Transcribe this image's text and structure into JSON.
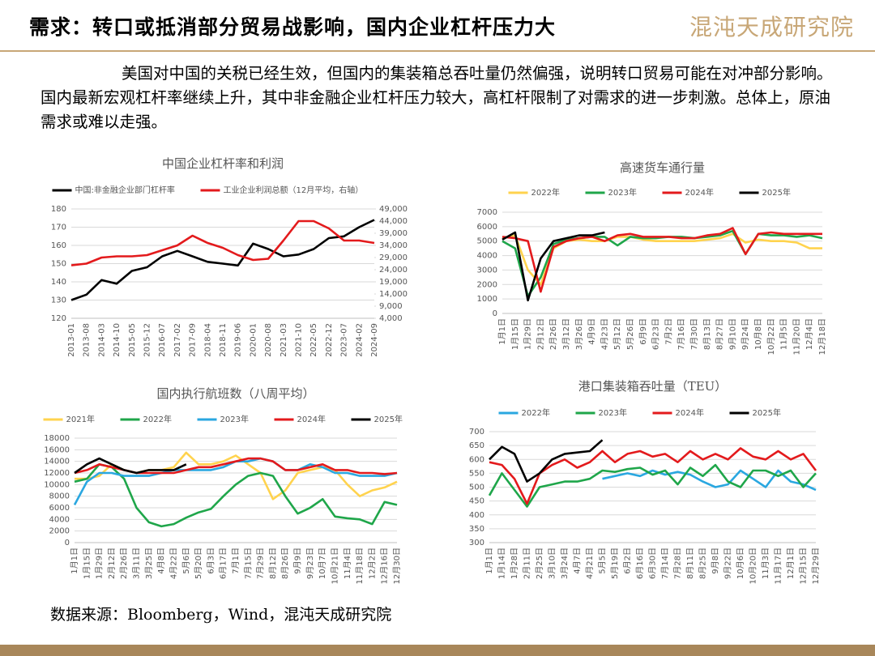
{
  "header": {
    "title": "需求：转口或抵消部分贸易战影响，国内企业杠杆压力大",
    "logo": "混沌天成研究院"
  },
  "body": "美国对中国的关税已经生效，但国内的集装箱总吞吐量仍然偏强，说明转口贸易可能在对冲部分影响。国内最新宏观杠杆率继续上升，其中非金融企业杠杆压力较大，高杠杆限制了对需求的进一步刺激。总体上，原油需求或难以走强。",
  "source": "数据来源：Bloomberg，Wind，混沌天成研究院",
  "chart_data": [
    {
      "type": "line",
      "title": "中国企业杠杆率和利润",
      "categories": [
        "2013-01",
        "2013-08",
        "2014-03",
        "2014-10",
        "2015-05",
        "2015-12",
        "2016-07",
        "2017-02",
        "2017-09",
        "2018-04",
        "2018-11",
        "2019-06",
        "2020-01",
        "2020-08",
        "2021-03",
        "2021-10",
        "2022-05",
        "2022-12",
        "2023-07",
        "2024-02",
        "2024-09"
      ],
      "ylim": [
        120,
        180
      ],
      "yticks": [
        120,
        130,
        140,
        150,
        160,
        170,
        180
      ],
      "y2lim": [
        4000,
        49000
      ],
      "y2ticks": [
        {
          "value": 4000,
          "label": "4,000"
        },
        {
          "value": 9000,
          "label": "9,000"
        },
        {
          "value": 14000,
          "label": "14,000"
        },
        {
          "value": 19000,
          "label": "19,000"
        },
        {
          "value": 24000,
          "label": "24,000"
        },
        {
          "value": 29000,
          "label": "29,000"
        },
        {
          "value": 34000,
          "label": "34,000"
        },
        {
          "value": 39000,
          "label": "39,000"
        },
        {
          "value": 44000,
          "label": "44,000"
        },
        {
          "value": 49000,
          "label": "49,000"
        }
      ],
      "grid": true,
      "series": [
        {
          "name": "中国:非金融企业部门杠杆率",
          "color": "#000000",
          "values": [
            130,
            133,
            141,
            139,
            146,
            148,
            154,
            157,
            154,
            151,
            150,
            149,
            161,
            158,
            154,
            155,
            158,
            164,
            165,
            170,
            174
          ]
        },
        {
          "name": "工业企业利润总额（12月平均，右轴）",
          "color": "#e31a1c",
          "axis": "y2",
          "values": [
            25800,
            26500,
            29000,
            29500,
            29500,
            30000,
            32000,
            34000,
            38000,
            35000,
            33000,
            30000,
            28000,
            28500,
            36000,
            44000,
            44000,
            41000,
            36000,
            36000,
            35000
          ]
        }
      ]
    },
    {
      "type": "line",
      "title": "高速货车通行量",
      "categories": [
        "1月1日",
        "1月15日",
        "1月29日",
        "2月12日",
        "2月26日",
        "3月12日",
        "3月26日",
        "4月9日",
        "4月23日",
        "5月12日",
        "5月26日",
        "6月9日",
        "6月23日",
        "7月2日",
        "7月16日",
        "7月30日",
        "8月13日",
        "8月27日",
        "9月10日",
        "9月24日",
        "10月8日",
        "10月22日",
        "11月5日",
        "11月20日",
        "12月4日",
        "12月18日"
      ],
      "ylim": [
        0,
        7000
      ],
      "yticks": [
        0,
        1000,
        2000,
        3000,
        4000,
        5000,
        6000,
        7000
      ],
      "grid": true,
      "series": [
        {
          "name": "2022年",
          "color": "#ffd34e",
          "values": [
            5200,
            5400,
            3000,
            2000,
            4500,
            5000,
            5100,
            5000,
            5000,
            5300,
            5300,
            5100,
            5000,
            5000,
            5000,
            5000,
            5100,
            5200,
            5500,
            4900,
            5100,
            5000,
            5000,
            4900,
            4500,
            4500
          ]
        },
        {
          "name": "2023年",
          "color": "#1fa64a",
          "values": [
            5000,
            4500,
            1200,
            2500,
            4800,
            5100,
            5200,
            5300,
            5300,
            4700,
            5300,
            5200,
            5200,
            5300,
            5300,
            5200,
            5300,
            5400,
            5700,
            4100,
            5500,
            5400,
            5400,
            5300,
            5400,
            5200
          ]
        },
        {
          "name": "2024年",
          "color": "#e31a1c",
          "values": [
            5300,
            5200,
            5000,
            1500,
            4600,
            5000,
            5200,
            5300,
            5000,
            5400,
            5500,
            5300,
            5300,
            5300,
            5200,
            5200,
            5400,
            5500,
            5900,
            4100,
            5500,
            5600,
            5500,
            5500,
            5500,
            5500
          ]
        },
        {
          "name": "2025年",
          "color": "#000000",
          "values": [
            5100,
            5600,
            900,
            3800,
            5000,
            5200,
            5400,
            5400,
            5600,
            null,
            null,
            null,
            null,
            null,
            null,
            null,
            null,
            null,
            null,
            null,
            null,
            null,
            null,
            null,
            null,
            null
          ]
        }
      ]
    },
    {
      "type": "line",
      "title": "国内执行航班数（八周平均）",
      "categories": [
        "1月1日",
        "1月15日",
        "1月29日",
        "2月12日",
        "2月26日",
        "3月11日",
        "3月25日",
        "4月8日",
        "4月22日",
        "5月6日",
        "5月20日",
        "6月3日",
        "6月17日",
        "7月1日",
        "7月15日",
        "7月29日",
        "8月12日",
        "8月26日",
        "9月9日",
        "9月23日",
        "10月7日",
        "10月21日",
        "11月4日",
        "11月18日",
        "12月2日",
        "12月16日",
        "12月30日"
      ],
      "ylim": [
        0,
        18000
      ],
      "yticks": [
        0,
        2000,
        4000,
        6000,
        8000,
        10000,
        12000,
        14000,
        16000,
        18000
      ],
      "grid": true,
      "series": [
        {
          "name": "2021年",
          "color": "#ffd34e",
          "values": [
            11000,
            11000,
            11500,
            13500,
            12500,
            12000,
            12500,
            12500,
            13000,
            15500,
            13500,
            13500,
            14000,
            15000,
            13500,
            12000,
            7500,
            9000,
            12000,
            12500,
            13000,
            12500,
            10000,
            8000,
            9000,
            9500,
            10500
          ]
        },
        {
          "name": "2022年",
          "color": "#1fa64a",
          "values": [
            10500,
            11000,
            13500,
            13000,
            11000,
            6000,
            3500,
            2800,
            3200,
            4300,
            5200,
            5800,
            8000,
            10000,
            11500,
            12000,
            11500,
            8000,
            5000,
            6000,
            7500,
            4500,
            4200,
            4000,
            3200,
            7000,
            6500
          ]
        },
        {
          "name": "2023年",
          "color": "#2aa7e0",
          "values": [
            6500,
            10500,
            12000,
            12000,
            11500,
            11500,
            11500,
            12000,
            12500,
            12500,
            12500,
            12500,
            13000,
            14000,
            14000,
            14500,
            14000,
            12500,
            12500,
            13500,
            13000,
            12000,
            12000,
            11500,
            11500,
            11500,
            12000
          ]
        },
        {
          "name": "2024年",
          "color": "#e31a1c",
          "values": [
            12000,
            12500,
            13500,
            13000,
            12500,
            12000,
            12000,
            12000,
            12000,
            12500,
            13000,
            13000,
            13500,
            14000,
            14500,
            14500,
            14000,
            12500,
            12500,
            13000,
            13500,
            12500,
            12500,
            12000,
            12000,
            11800,
            12000
          ]
        },
        {
          "name": "2025年",
          "color": "#000000",
          "values": [
            12000,
            13500,
            14500,
            13500,
            12500,
            12000,
            12500,
            12500,
            12500,
            13500,
            null,
            null,
            null,
            null,
            null,
            null,
            null,
            null,
            null,
            null,
            null,
            null,
            null,
            null,
            null,
            null,
            null
          ]
        }
      ]
    },
    {
      "type": "line",
      "title": "港口集装箱吞吐量（TEU）",
      "categories": [
        "1月1日",
        "1月14日",
        "1月28日",
        "2月11日",
        "2月25日",
        "3月10日",
        "3月24日",
        "4月7日",
        "4月21日",
        "5月5日",
        "5月19日",
        "6月2日",
        "6月16日",
        "6月30日",
        "7月14日",
        "7月28日",
        "8月11日",
        "8月25日",
        "9月8日",
        "9月22日",
        "10月6日",
        "10月20日",
        "11月3日",
        "11月17日",
        "12月1日",
        "12月15日",
        "12月29日"
      ],
      "ylim": [
        300,
        700
      ],
      "yticks": [
        300,
        350,
        400,
        450,
        500,
        550,
        600,
        650,
        700
      ],
      "grid": true,
      "series": [
        {
          "name": "2022年",
          "color": "#2aa7e0",
          "values": [
            null,
            null,
            null,
            null,
            null,
            null,
            null,
            null,
            null,
            530,
            540,
            550,
            540,
            560,
            545,
            555,
            545,
            520,
            500,
            510,
            560,
            530,
            500,
            560,
            520,
            510,
            490
          ]
        },
        {
          "name": "2023年",
          "color": "#1fa64a",
          "values": [
            470,
            550,
            490,
            430,
            500,
            510,
            520,
            520,
            530,
            560,
            555,
            565,
            570,
            545,
            560,
            510,
            570,
            540,
            580,
            520,
            500,
            560,
            560,
            540,
            560,
            500,
            550
          ]
        },
        {
          "name": "2024年",
          "color": "#e31a1c",
          "values": [
            590,
            580,
            530,
            440,
            550,
            580,
            600,
            570,
            590,
            630,
            590,
            620,
            630,
            610,
            620,
            590,
            630,
            600,
            620,
            600,
            640,
            610,
            600,
            630,
            600,
            620,
            560
          ]
        },
        {
          "name": "2025年",
          "color": "#000000",
          "values": [
            600,
            645,
            620,
            520,
            550,
            600,
            620,
            625,
            630,
            670,
            null,
            null,
            null,
            null,
            null,
            null,
            null,
            null,
            null,
            null,
            null,
            null,
            null,
            null,
            null,
            null,
            null
          ]
        }
      ]
    }
  ]
}
